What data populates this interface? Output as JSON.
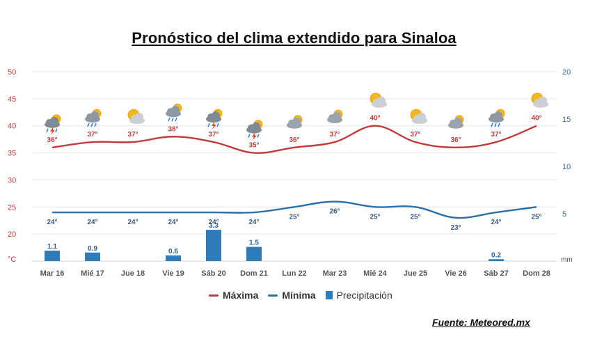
{
  "title": "Pronóstico del clima extendido para Sinaloa",
  "source": "Fuente: Meteored.mx",
  "colors": {
    "max": "#c23b3a",
    "min": "#2a6fa5",
    "precip": "#2e7bb9",
    "axis_left": "#c23b3a",
    "axis_right": "#2e6bb0",
    "grid": "#e6e6e6"
  },
  "legend": [
    {
      "label": "Máxima",
      "color": "#c23b3a",
      "kind": "line",
      "bold": true
    },
    {
      "label": "Mínima",
      "color": "#2a6fa5",
      "kind": "line",
      "bold": true
    },
    {
      "label": "Precipitación",
      "color": "#2e7bb9",
      "kind": "box",
      "bold": false
    }
  ],
  "chart_data": {
    "type": "line",
    "categories": [
      "Mar 16",
      "Mié 17",
      "Jue 18",
      "Vie 19",
      "Sáb 20",
      "Dom 21",
      "Lun 22",
      "Mar 23",
      "Mié 24",
      "Jue 25",
      "Vie 26",
      "Sáb 27",
      "Dom 28"
    ],
    "series": [
      {
        "name": "Máxima",
        "values": [
          36,
          37,
          37,
          38,
          37,
          35,
          36,
          37,
          40,
          37,
          36,
          37,
          40
        ],
        "labels": [
          "36°",
          "37°",
          "37°",
          "38°",
          "37°",
          "35°",
          "36°",
          "37°",
          "40°",
          "37°",
          "36°",
          "37°",
          "40°"
        ]
      },
      {
        "name": "Mínima",
        "values": [
          24,
          24,
          24,
          24,
          24,
          24,
          25,
          26,
          25,
          25,
          23,
          24,
          25
        ],
        "labels": [
          "24°",
          "24°",
          "24°",
          "24°",
          "24°",
          "24°",
          "25°",
          "26°",
          "25°",
          "25°",
          "23°",
          "24°",
          "25°"
        ]
      },
      {
        "name": "Precipitación",
        "type": "bar",
        "axis": "right",
        "values": [
          1.1,
          0.9,
          null,
          0.6,
          3.3,
          1.5,
          null,
          null,
          null,
          null,
          null,
          0.2,
          null
        ],
        "labels": [
          "1.1",
          "0.9",
          "",
          "0.6",
          "3.3",
          "1.5",
          "",
          "",
          "",
          "",
          "",
          "0.2",
          ""
        ]
      }
    ],
    "weather_icons": [
      "storm",
      "rain",
      "partly-sunny",
      "rain",
      "storm",
      "storm",
      "cloudy",
      "cloudy",
      "partly-sunny",
      "partly-sunny",
      "cloudy",
      "rain",
      "partly-sunny"
    ],
    "y_left": {
      "unit": "°C",
      "ticks": [
        50,
        45,
        40,
        35,
        30,
        25,
        20
      ]
    },
    "y_right": {
      "unit": "mm",
      "ticks": [
        20,
        15,
        10,
        5
      ]
    },
    "ylim_left": [
      15,
      50
    ],
    "ylim_right": [
      0,
      20
    ],
    "grid": true,
    "legend_position": "bottom-center"
  }
}
